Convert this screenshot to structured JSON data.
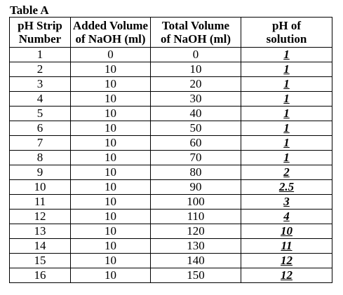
{
  "table": {
    "caption": "Table A",
    "headers": [
      [
        "pH Strip",
        "Number"
      ],
      [
        "Added Volume",
        "of NaOH (ml)"
      ],
      [
        "Total Volume",
        "of NaOH (ml)"
      ],
      [
        "pH of",
        "solution"
      ]
    ],
    "rows": [
      [
        "1",
        "0",
        "0",
        "1"
      ],
      [
        "2",
        "10",
        "10",
        "1"
      ],
      [
        "3",
        "10",
        "20",
        "1"
      ],
      [
        "4",
        "10",
        "30",
        "1"
      ],
      [
        "5",
        "10",
        "40",
        "1"
      ],
      [
        "6",
        "10",
        "50",
        "1"
      ],
      [
        "7",
        "10",
        "60",
        "1"
      ],
      [
        "8",
        "10",
        "70",
        "1"
      ],
      [
        "9",
        "10",
        "80",
        "2"
      ],
      [
        "10",
        "10",
        "90",
        "2.5"
      ],
      [
        "11",
        "10",
        "100",
        "3"
      ],
      [
        "12",
        "10",
        "110",
        "4"
      ],
      [
        "13",
        "10",
        "120",
        "10"
      ],
      [
        "14",
        "10",
        "130",
        "11"
      ],
      [
        "15",
        "10",
        "140",
        "12"
      ],
      [
        "16",
        "10",
        "150",
        "12"
      ]
    ]
  }
}
